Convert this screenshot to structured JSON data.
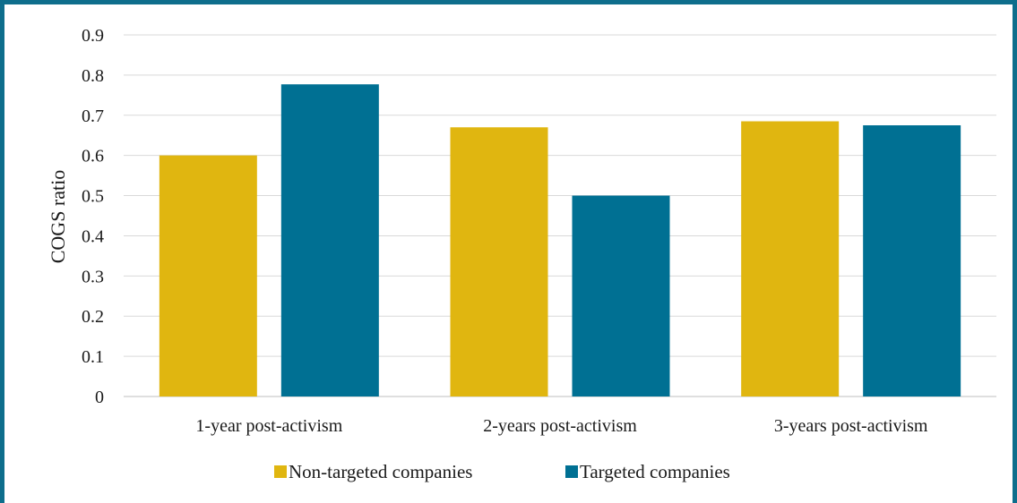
{
  "chart_data": {
    "type": "bar",
    "title": "",
    "xlabel": "",
    "ylabel": "COGS ratio",
    "ylim": [
      0,
      0.9
    ],
    "yticks": [
      "0",
      "0.1",
      "0.2",
      "0.3",
      "0.4",
      "0.5",
      "0.6",
      "0.7",
      "0.8",
      "0.9"
    ],
    "categories": [
      "1-year post-activism",
      "2-years post-activism",
      "3-years post-activism"
    ],
    "series": [
      {
        "name": "Non-targeted companies",
        "color": "#E0B610",
        "values": [
          0.6,
          0.67,
          0.685
        ]
      },
      {
        "name": "Targeted companies",
        "color": "#007093",
        "values": [
          0.777,
          0.5,
          0.675
        ]
      }
    ],
    "grid": true,
    "legend_position": "bottom"
  },
  "colors": {
    "frame": "#0E6E8C",
    "grid": "#D9D9D9"
  }
}
